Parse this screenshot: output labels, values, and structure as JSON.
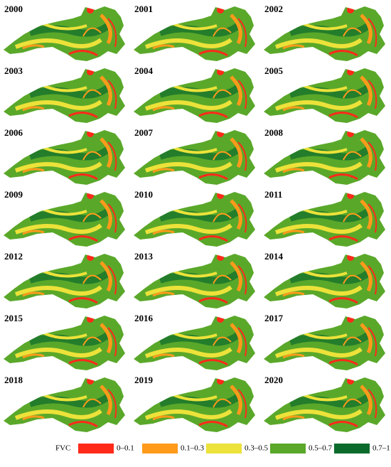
{
  "panels": [
    {
      "year": "2000"
    },
    {
      "year": "2001"
    },
    {
      "year": "2002"
    },
    {
      "year": "2003"
    },
    {
      "year": "2004"
    },
    {
      "year": "2005"
    },
    {
      "year": "2006"
    },
    {
      "year": "2007"
    },
    {
      "year": "2008"
    },
    {
      "year": "2009"
    },
    {
      "year": "2010"
    },
    {
      "year": "2011"
    },
    {
      "year": "2012"
    },
    {
      "year": "2013"
    },
    {
      "year": "2014"
    },
    {
      "year": "2015"
    },
    {
      "year": "2016"
    },
    {
      "year": "2017"
    },
    {
      "year": "2018"
    },
    {
      "year": "2019"
    },
    {
      "year": "2020"
    }
  ],
  "legend": {
    "title": "FVC",
    "items": [
      {
        "label": "0–0.1",
        "color": "#ff2a1a"
      },
      {
        "label": "0.1–0.3",
        "color": "#ff9a1a"
      },
      {
        "label": "0.3–0.5",
        "color": "#ece23a"
      },
      {
        "label": "0.5–0.7",
        "color": "#5aa82a"
      },
      {
        "label": "0.7–1",
        "color": "#0b6b2c"
      }
    ]
  }
}
